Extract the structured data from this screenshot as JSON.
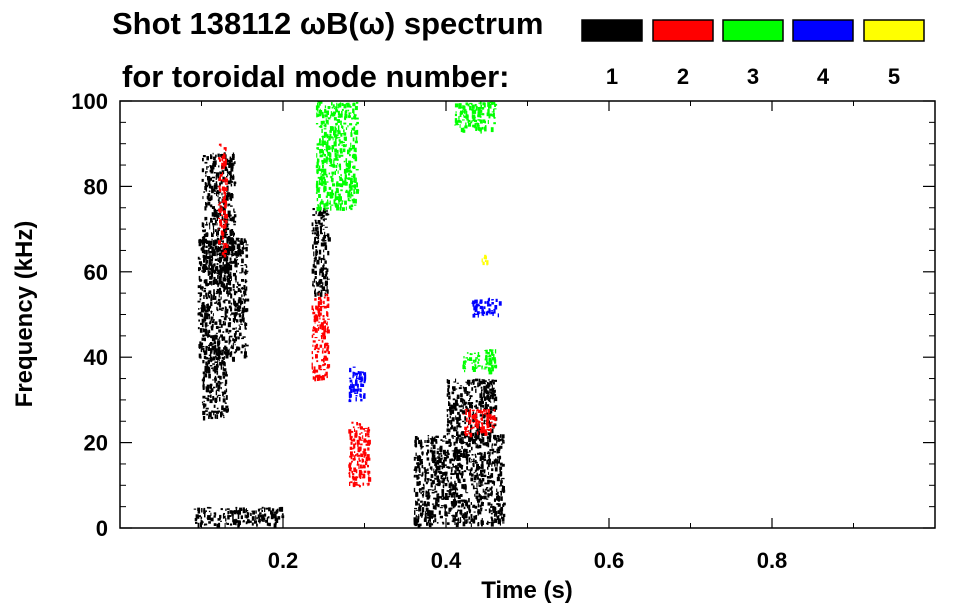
{
  "chart_data": {
    "type": "heatmap",
    "title_line1": "Shot 138112 ωB(ω) spectrum",
    "title_line2": "for toroidal mode number:",
    "xlabel": "Time (s)",
    "ylabel": "Frequency (kHz)",
    "xlim": [
      0.0,
      1.0
    ],
    "ylim": [
      0,
      100
    ],
    "x_ticks": [
      "0.2",
      "0.4",
      "0.6",
      "0.8"
    ],
    "x_tick_values": [
      0.2,
      0.4,
      0.6,
      0.8
    ],
    "y_ticks": [
      "0",
      "20",
      "40",
      "60",
      "80",
      "100"
    ],
    "y_tick_values": [
      0,
      20,
      40,
      60,
      80,
      100
    ],
    "legend": [
      {
        "label": "1",
        "color": "#000000"
      },
      {
        "label": "2",
        "color": "#ff0000"
      },
      {
        "label": "3",
        "color": "#00ff00"
      },
      {
        "label": "4",
        "color": "#0000ff"
      },
      {
        "label": "5",
        "color": "#ffff00"
      }
    ],
    "regions": [
      {
        "n": 1,
        "t": [
          0.095,
          0.155
        ],
        "f": [
          40,
          68
        ]
      },
      {
        "n": 1,
        "t": [
          0.1,
          0.14
        ],
        "f": [
          60,
          88
        ]
      },
      {
        "n": 1,
        "t": [
          0.1,
          0.13
        ],
        "f": [
          26,
          42
        ]
      },
      {
        "n": 1,
        "t": [
          0.235,
          0.255
        ],
        "f": [
          55,
          75
        ]
      },
      {
        "n": 1,
        "t": [
          0.36,
          0.47
        ],
        "f": [
          1,
          22
        ]
      },
      {
        "n": 1,
        "t": [
          0.4,
          0.46
        ],
        "f": [
          22,
          35
        ]
      },
      {
        "n": 1,
        "t": [
          0.09,
          0.2
        ],
        "f": [
          1,
          5
        ]
      },
      {
        "n": 2,
        "t": [
          0.235,
          0.255
        ],
        "f": [
          35,
          55
        ]
      },
      {
        "n": 2,
        "t": [
          0.28,
          0.305
        ],
        "f": [
          10,
          25
        ]
      },
      {
        "n": 2,
        "t": [
          0.42,
          0.46
        ],
        "f": [
          22,
          28
        ]
      },
      {
        "n": 2,
        "t": [
          0.12,
          0.13
        ],
        "f": [
          64,
          90
        ]
      },
      {
        "n": 3,
        "t": [
          0.24,
          0.29
        ],
        "f": [
          75,
          100
        ]
      },
      {
        "n": 3,
        "t": [
          0.42,
          0.46
        ],
        "f": [
          37,
          42
        ]
      },
      {
        "n": 3,
        "t": [
          0.41,
          0.46
        ],
        "f": [
          93,
          100
        ]
      },
      {
        "n": 4,
        "t": [
          0.28,
          0.3
        ],
        "f": [
          30,
          38
        ]
      },
      {
        "n": 4,
        "t": [
          0.43,
          0.465
        ],
        "f": [
          50,
          54
        ]
      },
      {
        "n": 5,
        "t": [
          0.44,
          0.45
        ],
        "f": [
          62,
          64
        ]
      }
    ]
  }
}
